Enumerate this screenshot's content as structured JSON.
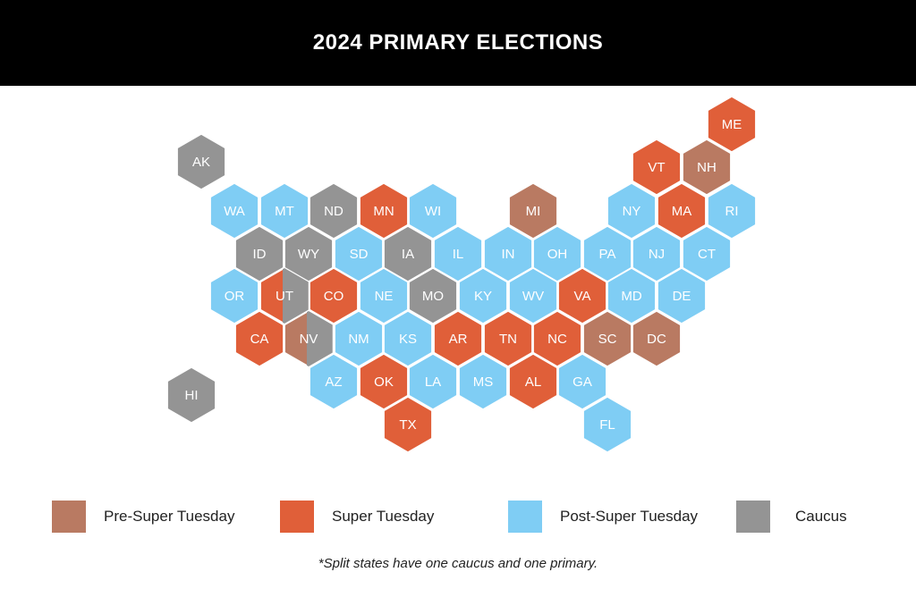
{
  "title": "2024 PRIMARY ELECTIONS",
  "colors": {
    "pre": "#b97a62",
    "super": "#e05f39",
    "post": "#7fcdf4",
    "caucus": "#949494"
  },
  "legend": [
    {
      "key": "pre",
      "label": "Pre-Super Tuesday"
    },
    {
      "key": "super",
      "label": "Super Tuesday"
    },
    {
      "key": "post",
      "label": "Post-Super Tuesday"
    },
    {
      "key": "caucus",
      "label": "Caucus"
    }
  ],
  "footnote": "*Split states have one caucus and one primary.",
  "states": [
    {
      "abbr": "ME",
      "category": "super"
    },
    {
      "abbr": "VT",
      "category": "super"
    },
    {
      "abbr": "NH",
      "category": "pre"
    },
    {
      "abbr": "AK",
      "category": "caucus"
    },
    {
      "abbr": "WA",
      "category": "post"
    },
    {
      "abbr": "MT",
      "category": "post"
    },
    {
      "abbr": "ND",
      "category": "caucus"
    },
    {
      "abbr": "MN",
      "category": "super"
    },
    {
      "abbr": "WI",
      "category": "post"
    },
    {
      "abbr": "MI",
      "category": "pre"
    },
    {
      "abbr": "NY",
      "category": "post"
    },
    {
      "abbr": "MA",
      "category": "super"
    },
    {
      "abbr": "RI",
      "category": "post"
    },
    {
      "abbr": "ID",
      "category": "caucus"
    },
    {
      "abbr": "WY",
      "category": "caucus"
    },
    {
      "abbr": "SD",
      "category": "post"
    },
    {
      "abbr": "IA",
      "category": "caucus"
    },
    {
      "abbr": "IL",
      "category": "post"
    },
    {
      "abbr": "IN",
      "category": "post"
    },
    {
      "abbr": "OH",
      "category": "post"
    },
    {
      "abbr": "PA",
      "category": "post"
    },
    {
      "abbr": "NJ",
      "category": "post"
    },
    {
      "abbr": "CT",
      "category": "post"
    },
    {
      "abbr": "OR",
      "category": "post"
    },
    {
      "abbr": "UT",
      "category": "super",
      "split": "caucus"
    },
    {
      "abbr": "CO",
      "category": "super"
    },
    {
      "abbr": "NE",
      "category": "post"
    },
    {
      "abbr": "MO",
      "category": "caucus"
    },
    {
      "abbr": "KY",
      "category": "post"
    },
    {
      "abbr": "WV",
      "category": "post"
    },
    {
      "abbr": "VA",
      "category": "super"
    },
    {
      "abbr": "MD",
      "category": "post"
    },
    {
      "abbr": "DE",
      "category": "post"
    },
    {
      "abbr": "CA",
      "category": "super"
    },
    {
      "abbr": "NV",
      "category": "pre",
      "split": "caucus"
    },
    {
      "abbr": "NM",
      "category": "post"
    },
    {
      "abbr": "KS",
      "category": "post"
    },
    {
      "abbr": "AR",
      "category": "super"
    },
    {
      "abbr": "TN",
      "category": "super"
    },
    {
      "abbr": "NC",
      "category": "super"
    },
    {
      "abbr": "SC",
      "category": "pre"
    },
    {
      "abbr": "DC",
      "category": "pre"
    },
    {
      "abbr": "HI",
      "category": "caucus"
    },
    {
      "abbr": "AZ",
      "category": "post"
    },
    {
      "abbr": "OK",
      "category": "super"
    },
    {
      "abbr": "LA",
      "category": "post"
    },
    {
      "abbr": "MS",
      "category": "post"
    },
    {
      "abbr": "AL",
      "category": "super"
    },
    {
      "abbr": "GA",
      "category": "post"
    },
    {
      "abbr": "TX",
      "category": "super"
    },
    {
      "abbr": "FL",
      "category": "post"
    }
  ]
}
